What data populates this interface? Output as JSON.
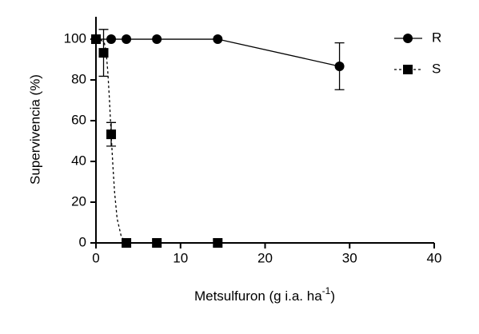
{
  "chart_data": {
    "type": "scatter",
    "xlabel": "Metsulfuron (g i.a. ha",
    "xlabel_sup": "-1",
    "xlabel_end": ")",
    "ylabel": "Supervivencia (%)",
    "xlim": [
      0,
      40
    ],
    "xticks": [
      0,
      10,
      20,
      30,
      40
    ],
    "ylim": [
      0,
      111
    ],
    "yticks": [
      0,
      20,
      40,
      60,
      80,
      100
    ],
    "legend": "upper right",
    "series": [
      {
        "name": "R",
        "color": "#000000",
        "marker": "circle",
        "line": "solid",
        "x": [
          0,
          1.8,
          3.6,
          7.2,
          14.4,
          28.8
        ],
        "values": [
          100,
          100,
          100,
          100,
          100,
          86.7
        ],
        "errors": [
          null,
          null,
          null,
          null,
          null,
          11.5
        ]
      },
      {
        "name": "S",
        "color": "#000000",
        "marker": "square",
        "line": "dashed",
        "x": [
          0,
          0.9,
          1.8,
          3.6,
          7.2,
          14.4
        ],
        "values": [
          100,
          93.3,
          53.3,
          0,
          0,
          0
        ],
        "errors": [
          null,
          11.5,
          5.8,
          null,
          null,
          null
        ],
        "fit_x": [
          0,
          0.5,
          1,
          1.2,
          1.4,
          1.6,
          1.8,
          2,
          2.2,
          2.5,
          3,
          3.5,
          4,
          14.4
        ],
        "fit_values": [
          100,
          100,
          98,
          94,
          84,
          70,
          53,
          38,
          25,
          12,
          3,
          0.5,
          0,
          0
        ]
      }
    ]
  }
}
